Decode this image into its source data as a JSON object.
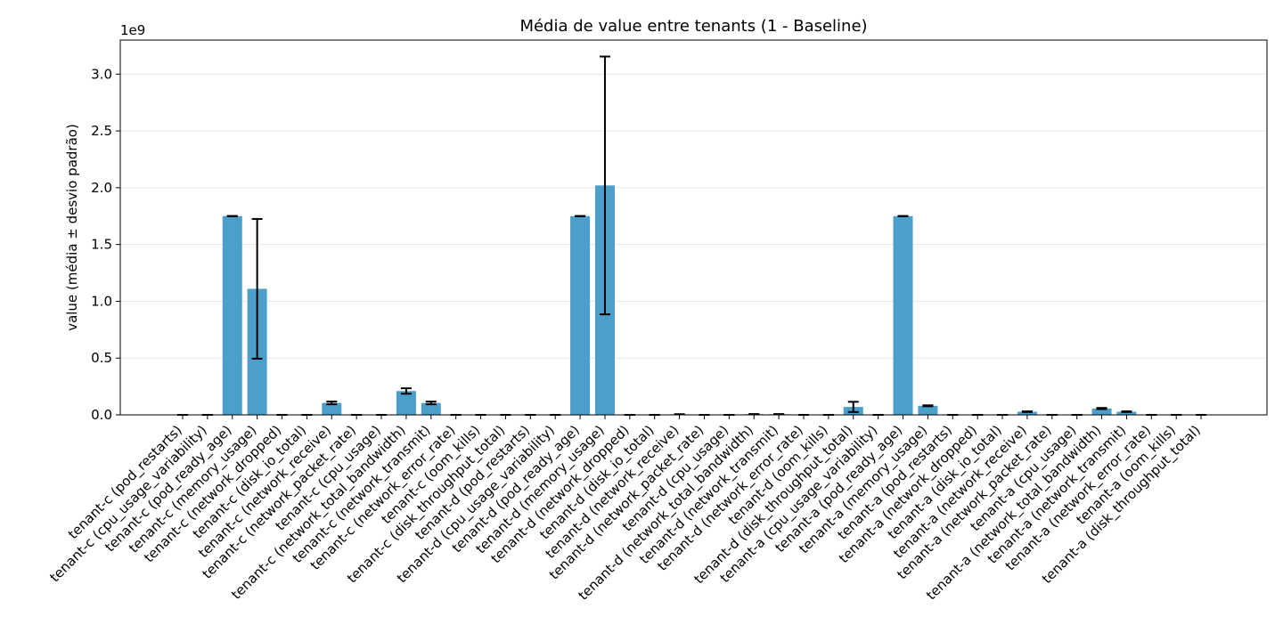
{
  "chart_data": {
    "type": "bar",
    "title": "Média de value entre tenants (1 - Baseline)",
    "xlabel": "",
    "ylabel": "value (média ± desvio padrão)",
    "y_offset_label": "1e9",
    "ylim": [
      0,
      3.3
    ],
    "yticks": [
      0.0,
      0.5,
      1.0,
      1.5,
      2.0,
      2.5,
      3.0
    ],
    "ytick_labels": [
      "0.0",
      "0.5",
      "1.0",
      "1.5",
      "2.0",
      "2.5",
      "3.0"
    ],
    "grid": "horizontal",
    "bar_color": "#4c9fcb",
    "categories": [
      "tenant-c (pod_restarts)",
      "tenant-c (cpu_usage_variability)",
      "tenant-c (pod_ready_age)",
      "tenant-c (memory_usage)",
      "tenant-c (network_dropped)",
      "tenant-c (disk_io_total)",
      "tenant-c (network_receive)",
      "tenant-c (network_packet_rate)",
      "tenant-c (cpu_usage)",
      "tenant-c (network_total_bandwidth)",
      "tenant-c (network_transmit)",
      "tenant-c (network_error_rate)",
      "tenant-c (oom_kills)",
      "tenant-c (disk_throughput_total)",
      "tenant-d (pod_restarts)",
      "tenant-d (cpu_usage_variability)",
      "tenant-d (pod_ready_age)",
      "tenant-d (memory_usage)",
      "tenant-d (network_dropped)",
      "tenant-d (disk_io_total)",
      "tenant-d (network_receive)",
      "tenant-d (network_packet_rate)",
      "tenant-d (cpu_usage)",
      "tenant-d (network_total_bandwidth)",
      "tenant-d (network_transmit)",
      "tenant-d (network_error_rate)",
      "tenant-d (oom_kills)",
      "tenant-d (disk_throughput_total)",
      "tenant-a (cpu_usage_variability)",
      "tenant-a (pod_ready_age)",
      "tenant-a (memory_usage)",
      "tenant-a (pod_restarts)",
      "tenant-a (network_dropped)",
      "tenant-a (disk_io_total)",
      "tenant-a (network_receive)",
      "tenant-a (network_packet_rate)",
      "tenant-a (cpu_usage)",
      "tenant-a (network_total_bandwidth)",
      "tenant-a (network_transmit)",
      "tenant-a (network_error_rate)",
      "tenant-a (oom_kills)",
      "tenant-a (disk_throughput_total)"
    ],
    "values": [
      0,
      0,
      1.75,
      1.11,
      0,
      0,
      0.105,
      0,
      0,
      0.21,
      0.105,
      0,
      0,
      0,
      0,
      0,
      1.75,
      2.02,
      0,
      0,
      0.005,
      0,
      0,
      0.006,
      0.006,
      0,
      0,
      0.07,
      0,
      1.75,
      0.08,
      0,
      0,
      0,
      0.028,
      0,
      0,
      0.056,
      0.028,
      0,
      0,
      0
    ],
    "errors": [
      0,
      0,
      0.001,
      0.615,
      0,
      0,
      0.012,
      0,
      0,
      0.024,
      0.012,
      0,
      0,
      0,
      0,
      0,
      0.001,
      1.135,
      0,
      0,
      0.001,
      0,
      0,
      0.001,
      0.001,
      0,
      0,
      0.045,
      0,
      0.001,
      0.004,
      0,
      0,
      0,
      0.003,
      0,
      0,
      0.005,
      0.003,
      0,
      0,
      0
    ]
  }
}
